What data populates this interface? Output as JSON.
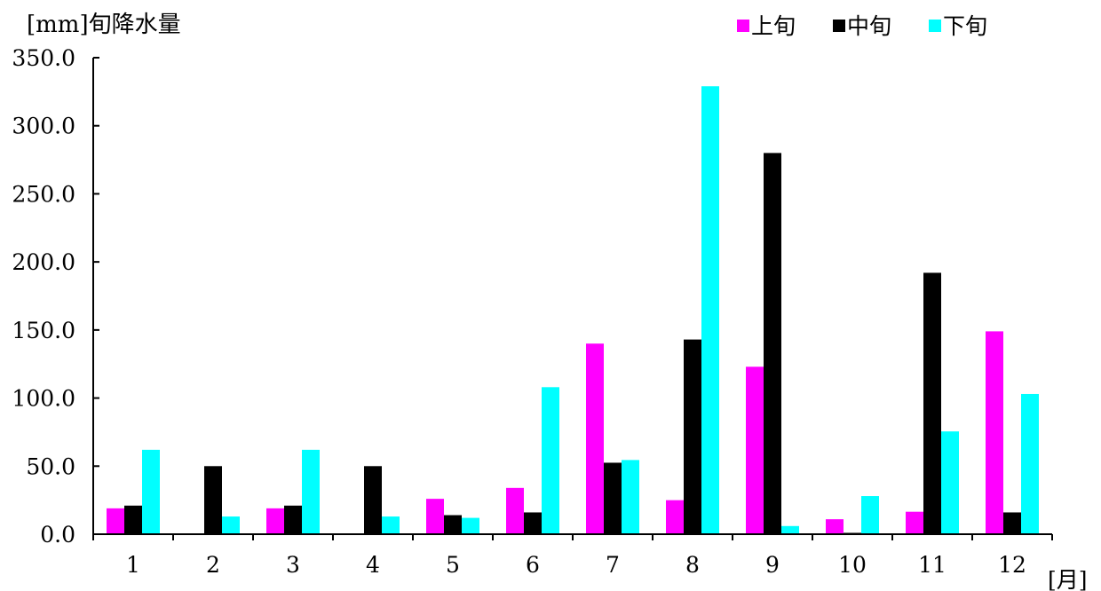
{
  "chart_data": {
    "type": "bar",
    "ylabel": "[mm]旬降水量",
    "xlabel": "[月]",
    "categories": [
      "1",
      "2",
      "3",
      "4",
      "5",
      "6",
      "7",
      "8",
      "9",
      "10",
      "11",
      "12"
    ],
    "ylim": [
      0,
      350
    ],
    "yticks": [
      "0.0",
      "50.0",
      "100.0",
      "150.0",
      "200.0",
      "250.0",
      "300.0",
      "350.0"
    ],
    "grid": false,
    "legend_position": "top-right",
    "series": [
      {
        "name": "上旬",
        "color": "#ff00ff",
        "values": [
          19,
          0,
          19,
          0,
          26,
          34,
          140,
          25,
          123,
          11,
          16.5,
          149
        ]
      },
      {
        "name": "中旬",
        "color": "#000000",
        "values": [
          21,
          50,
          21,
          50,
          14,
          16,
          52.5,
          143,
          280,
          1,
          192,
          16
        ]
      },
      {
        "name": "下旬",
        "color": "#00ffff",
        "values": [
          62,
          13,
          62,
          13,
          12,
          108,
          54.5,
          329,
          6,
          28,
          75.5,
          103
        ]
      }
    ]
  }
}
